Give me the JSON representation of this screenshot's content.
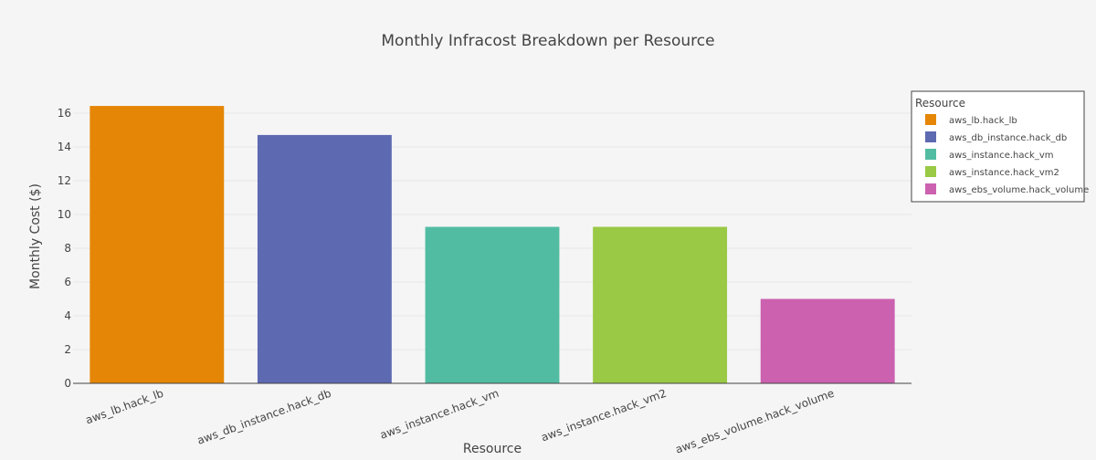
{
  "chart_data": {
    "type": "bar",
    "title": "Monthly Infracost Breakdown per Resource",
    "xlabel": "Resource",
    "ylabel": "Monthly Cost ($)",
    "categories": [
      "aws_lb.hack_lb",
      "aws_db_instance.hack_db",
      "aws_instance.hack_vm",
      "aws_instance.hack_vm2",
      "aws_ebs_volume.hack_volume"
    ],
    "values": [
      16.43,
      14.71,
      9.27,
      9.27,
      5.0
    ],
    "colors": [
      "#e58606",
      "#5d69b1",
      "#52bca3",
      "#99c945",
      "#cc61b0"
    ],
    "ylim": [
      0,
      17.3
    ],
    "yticks": [
      0,
      2,
      4,
      6,
      8,
      10,
      12,
      14,
      16
    ],
    "grid": true,
    "legend": {
      "title": "Resource",
      "placement": "top-right",
      "entries": [
        "aws_lb.hack_lb",
        "aws_db_instance.hack_db",
        "aws_instance.hack_vm",
        "aws_instance.hack_vm2",
        "aws_ebs_volume.hack_volume"
      ]
    }
  }
}
